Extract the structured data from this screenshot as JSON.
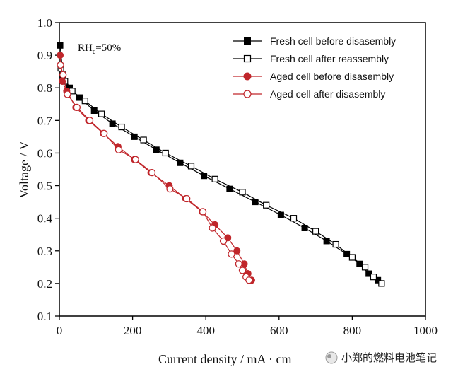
{
  "chart_data": {
    "type": "line",
    "title": "",
    "xlabel": "Current density / mA · cm",
    "ylabel": "Voltage / V",
    "xlim": [
      0,
      1000
    ],
    "ylim": [
      0.1,
      1.0
    ],
    "x_ticks": [
      "0",
      "200",
      "400",
      "600",
      "800",
      "1000"
    ],
    "y_ticks": [
      "0.1",
      "0.2",
      "0.3",
      "0.4",
      "0.5",
      "0.6",
      "0.7",
      "0.8",
      "0.9",
      "1.0"
    ],
    "annotation": {
      "main": "RH",
      "sub": "c",
      "tail": "=50%"
    },
    "legend_position": "top-right",
    "series": [
      {
        "name": "Fresh cell before disasembly",
        "color": "#000000",
        "marker": "filled-square",
        "x": [
          2,
          10,
          28,
          55,
          95,
          145,
          205,
          265,
          330,
          395,
          465,
          535,
          605,
          670,
          730,
          785,
          820,
          845,
          870
        ],
        "y": [
          0.93,
          0.84,
          0.8,
          0.77,
          0.73,
          0.69,
          0.65,
          0.61,
          0.57,
          0.53,
          0.49,
          0.45,
          0.41,
          0.37,
          0.33,
          0.29,
          0.26,
          0.23,
          0.21
        ]
      },
      {
        "name": "Fresh cell after reassembly",
        "color": "#000000",
        "marker": "open-square",
        "x": [
          4,
          15,
          35,
          70,
          115,
          170,
          230,
          290,
          360,
          425,
          500,
          565,
          640,
          700,
          755,
          800,
          835,
          858,
          880
        ],
        "y": [
          0.86,
          0.82,
          0.79,
          0.76,
          0.72,
          0.68,
          0.64,
          0.6,
          0.56,
          0.52,
          0.48,
          0.44,
          0.4,
          0.36,
          0.32,
          0.28,
          0.25,
          0.22,
          0.2
        ]
      },
      {
        "name": "Aged cell before disasembly",
        "color": "#c0262b",
        "marker": "filled-circle",
        "x": [
          2,
          8,
          20,
          45,
          80,
          120,
          160,
          205,
          250,
          300,
          345,
          390,
          425,
          460,
          485,
          505,
          515,
          525
        ],
        "y": [
          0.9,
          0.82,
          0.79,
          0.74,
          0.7,
          0.66,
          0.62,
          0.58,
          0.54,
          0.5,
          0.46,
          0.42,
          0.38,
          0.34,
          0.3,
          0.26,
          0.23,
          0.21
        ]
      },
      {
        "name": "Aged cell after disasembly",
        "color": "#c0262b",
        "marker": "open-circle",
        "x": [
          3,
          10,
          22,
          48,
          83,
          122,
          162,
          208,
          253,
          302,
          348,
          392,
          418,
          448,
          470,
          490,
          500,
          510,
          518
        ],
        "y": [
          0.87,
          0.84,
          0.78,
          0.74,
          0.7,
          0.66,
          0.61,
          0.58,
          0.54,
          0.49,
          0.46,
          0.42,
          0.37,
          0.33,
          0.29,
          0.26,
          0.24,
          0.22,
          0.21
        ]
      }
    ]
  },
  "watermark": {
    "text": "小郑的燃料电池笔记"
  }
}
